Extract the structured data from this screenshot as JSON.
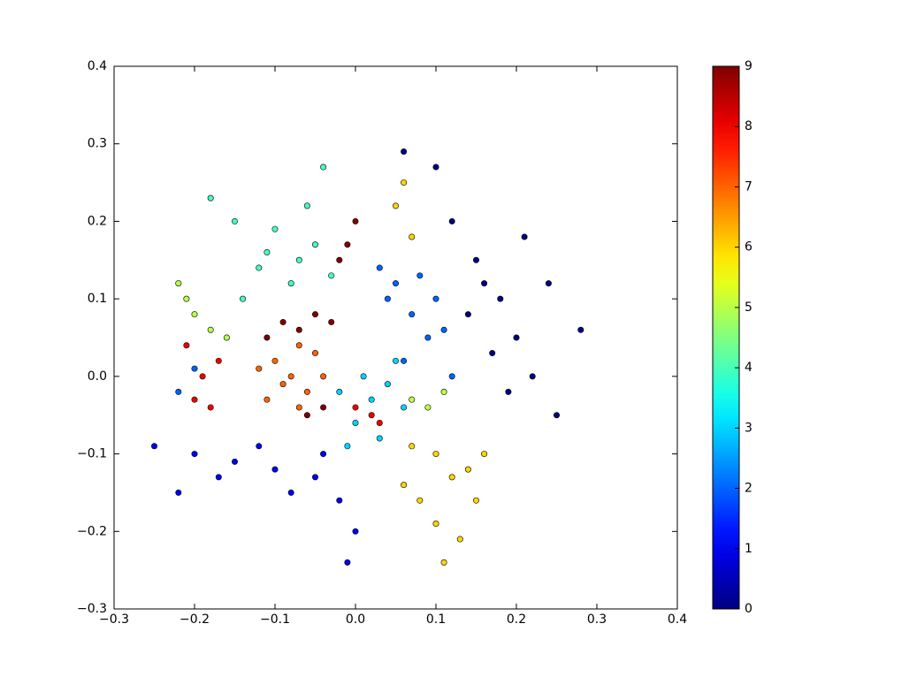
{
  "chart_data": {
    "type": "scatter",
    "x": [
      0.12,
      0.15,
      0.18,
      0.2,
      0.22,
      0.25,
      0.17,
      0.14,
      0.1,
      0.06,
      0.28,
      0.24,
      0.19,
      0.16,
      0.21,
      -0.2,
      -0.15,
      -0.1,
      -0.05,
      -0.02,
      0.0,
      -0.08,
      -0.12,
      -0.25,
      -0.22,
      -0.04,
      -0.01,
      -0.17,
      0.05,
      0.07,
      0.09,
      0.04,
      0.1,
      0.06,
      0.12,
      0.03,
      0.08,
      -0.22,
      -0.2,
      0.11,
      0.02,
      0.04,
      0.0,
      -0.02,
      0.05,
      0.03,
      0.01,
      -0.01,
      0.06,
      -0.12,
      -0.08,
      -0.05,
      -0.1,
      -0.14,
      -0.06,
      -0.15,
      -0.03,
      -0.18,
      -0.11,
      -0.07,
      -0.04,
      -0.2,
      -0.22,
      -0.18,
      -0.21,
      0.07,
      0.09,
      0.11,
      -0.16,
      0.1,
      0.12,
      0.08,
      0.14,
      0.1,
      0.06,
      0.13,
      0.16,
      0.07,
      0.05,
      0.07,
      0.06,
      0.11,
      0.15,
      -0.08,
      -0.1,
      -0.06,
      -0.05,
      -0.11,
      -0.07,
      -0.09,
      -0.04,
      -0.12,
      -0.07,
      -0.19,
      -0.2,
      -0.17,
      0.02,
      0.0,
      0.03,
      -0.18,
      -0.21,
      -0.07,
      -0.09,
      -0.05,
      -0.11,
      -0.03,
      -0.01,
      0.0,
      -0.02,
      -0.06,
      -0.04
    ],
    "values": [
      0.2,
      0.15,
      0.1,
      0.05,
      0.0,
      -0.05,
      0.03,
      0.08,
      0.27,
      0.29,
      0.06,
      0.12,
      -0.02,
      0.12,
      0.18,
      -0.1,
      -0.11,
      -0.12,
      -0.13,
      -0.16,
      -0.2,
      -0.15,
      -0.09,
      -0.09,
      -0.15,
      -0.1,
      -0.24,
      -0.13,
      0.12,
      0.08,
      0.05,
      0.1,
      0.1,
      0.02,
      0.0,
      0.14,
      0.13,
      -0.02,
      0.01,
      0.06,
      -0.03,
      -0.01,
      -0.06,
      -0.02,
      0.02,
      -0.08,
      0.0,
      -0.09,
      -0.04,
      0.14,
      0.12,
      0.17,
      0.19,
      0.1,
      0.22,
      0.2,
      0.13,
      0.23,
      0.16,
      0.15,
      0.27,
      0.08,
      0.12,
      0.06,
      0.1,
      -0.03,
      -0.04,
      -0.02,
      0.05,
      -0.1,
      -0.13,
      -0.16,
      -0.12,
      -0.19,
      -0.14,
      -0.21,
      -0.1,
      -0.09,
      0.22,
      0.18,
      0.25,
      -0.24,
      -0.16,
      0.0,
      0.02,
      -0.02,
      0.03,
      -0.03,
      0.04,
      -0.01,
      0.0,
      0.01,
      -0.04,
      0.0,
      -0.03,
      0.02,
      -0.05,
      -0.04,
      -0.06,
      -0.04,
      0.04,
      0.06,
      0.07,
      0.08,
      0.05,
      0.07,
      0.17,
      0.2,
      0.15,
      -0.05,
      -0.04
    ],
    "color_values": [
      0,
      0,
      0,
      0,
      0,
      0,
      0,
      0,
      0,
      0,
      0,
      0,
      0,
      0,
      0,
      1,
      1,
      1,
      1,
      1,
      1,
      1,
      1,
      1,
      1,
      1,
      1,
      1,
      2,
      2,
      2,
      2,
      2,
      2,
      2,
      2,
      2,
      2,
      2,
      2,
      3,
      3,
      3,
      3,
      3,
      3,
      3,
      3,
      3,
      4,
      4,
      4,
      4,
      4,
      4,
      4,
      4,
      4,
      4,
      4,
      4,
      5,
      5,
      5,
      5,
      5,
      5,
      5,
      5,
      6,
      6,
      6,
      6,
      6,
      6,
      6,
      6,
      6,
      6,
      6,
      6,
      6,
      6,
      7,
      7,
      7,
      7,
      7,
      7,
      7,
      7,
      7,
      7,
      8,
      8,
      8,
      8,
      8,
      8,
      8,
      8,
      9,
      9,
      9,
      9,
      9,
      9,
      9,
      9,
      9,
      9
    ],
    "colormap": "jet",
    "clim": [
      0,
      9
    ],
    "colorbar_ticks": [
      0,
      1,
      2,
      3,
      4,
      5,
      6,
      7,
      8,
      9
    ],
    "xlim": [
      -0.3,
      0.4
    ],
    "xticks": [
      {
        "value": -0.3,
        "label": "−0.3"
      },
      {
        "value": -0.2,
        "label": "−0.2"
      },
      {
        "value": -0.1,
        "label": "−0.1"
      },
      {
        "value": 0.0,
        "label": "0.0"
      },
      0.1,
      0.2,
      0.3,
      0.4
    ],
    "ylim": [
      -0.3,
      0.4
    ],
    "yticks": [
      {
        "value": -0.3,
        "label": "−0.3"
      },
      {
        "value": -0.2,
        "label": "−0.2"
      },
      {
        "value": -0.1,
        "label": "−0.1"
      },
      {
        "value": 0.0,
        "label": "0.0"
      },
      0.1,
      0.2,
      0.3,
      0.4
    ]
  }
}
